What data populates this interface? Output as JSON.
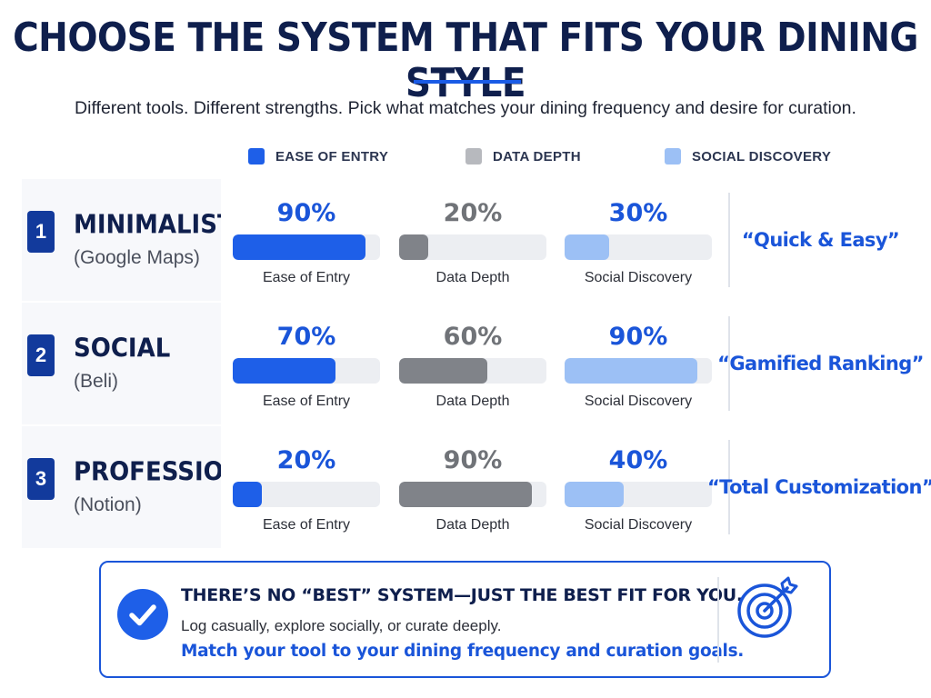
{
  "title": "CHOOSE THE SYSTEM THAT FITS YOUR DINING STYLE",
  "subtitle": "Different tools. Different strengths. Pick what matches your dining frequency and desire for curation.",
  "legend": [
    {
      "label": "EASE OF ENTRY",
      "color": "#1e5fe8"
    },
    {
      "label": "DATA DEPTH",
      "color": "#b7b9be"
    },
    {
      "label": "SOCIAL DISCOVERY",
      "color": "#9cc0f5"
    }
  ],
  "rows": [
    {
      "number": "1",
      "name": "MINIMALIST",
      "tool": "(Google Maps)",
      "quote": "“Quick & Easy”"
    },
    {
      "number": "2",
      "name": "SOCIAL",
      "tool": "(Beli)",
      "quote": "“Gamified Ranking”"
    },
    {
      "number": "3",
      "name": "PROFESSIONAL",
      "tool": "(Notion)",
      "quote": "“Total Customization”"
    }
  ],
  "chart_data": {
    "type": "bar",
    "categories": [
      "MINIMALIST (Google Maps)",
      "SOCIAL (Beli)",
      "PROFESSIONAL (Notion)"
    ],
    "series": [
      {
        "name": "Ease of Entry",
        "values": [
          90,
          70,
          20
        ],
        "labels": [
          "90%",
          "70%",
          "20%"
        ],
        "color": "#1e5fe8",
        "text_color": "#1a55d9"
      },
      {
        "name": "Data Depth",
        "values": [
          20,
          60,
          90
        ],
        "labels": [
          "20%",
          "60%",
          "90%"
        ],
        "color": "#808389",
        "text_color": "#707378"
      },
      {
        "name": "Social Discovery",
        "values": [
          30,
          90,
          40
        ],
        "labels": [
          "30%",
          "90%",
          "40%"
        ],
        "color": "#9cc0f5",
        "text_color": "#1a55d9"
      }
    ],
    "ylim": [
      0,
      100
    ]
  },
  "callout": {
    "heading": "THERE’S NO “BEST” SYSTEM—JUST THE BEST FIT FOR YOU.",
    "body": "Log casually, explore socially, or curate deeply.",
    "emphasis": "Match your tool to your dining frequency and curation goals.",
    "check_icon": "check-circle-icon",
    "target_icon": "target-arrow-icon"
  }
}
